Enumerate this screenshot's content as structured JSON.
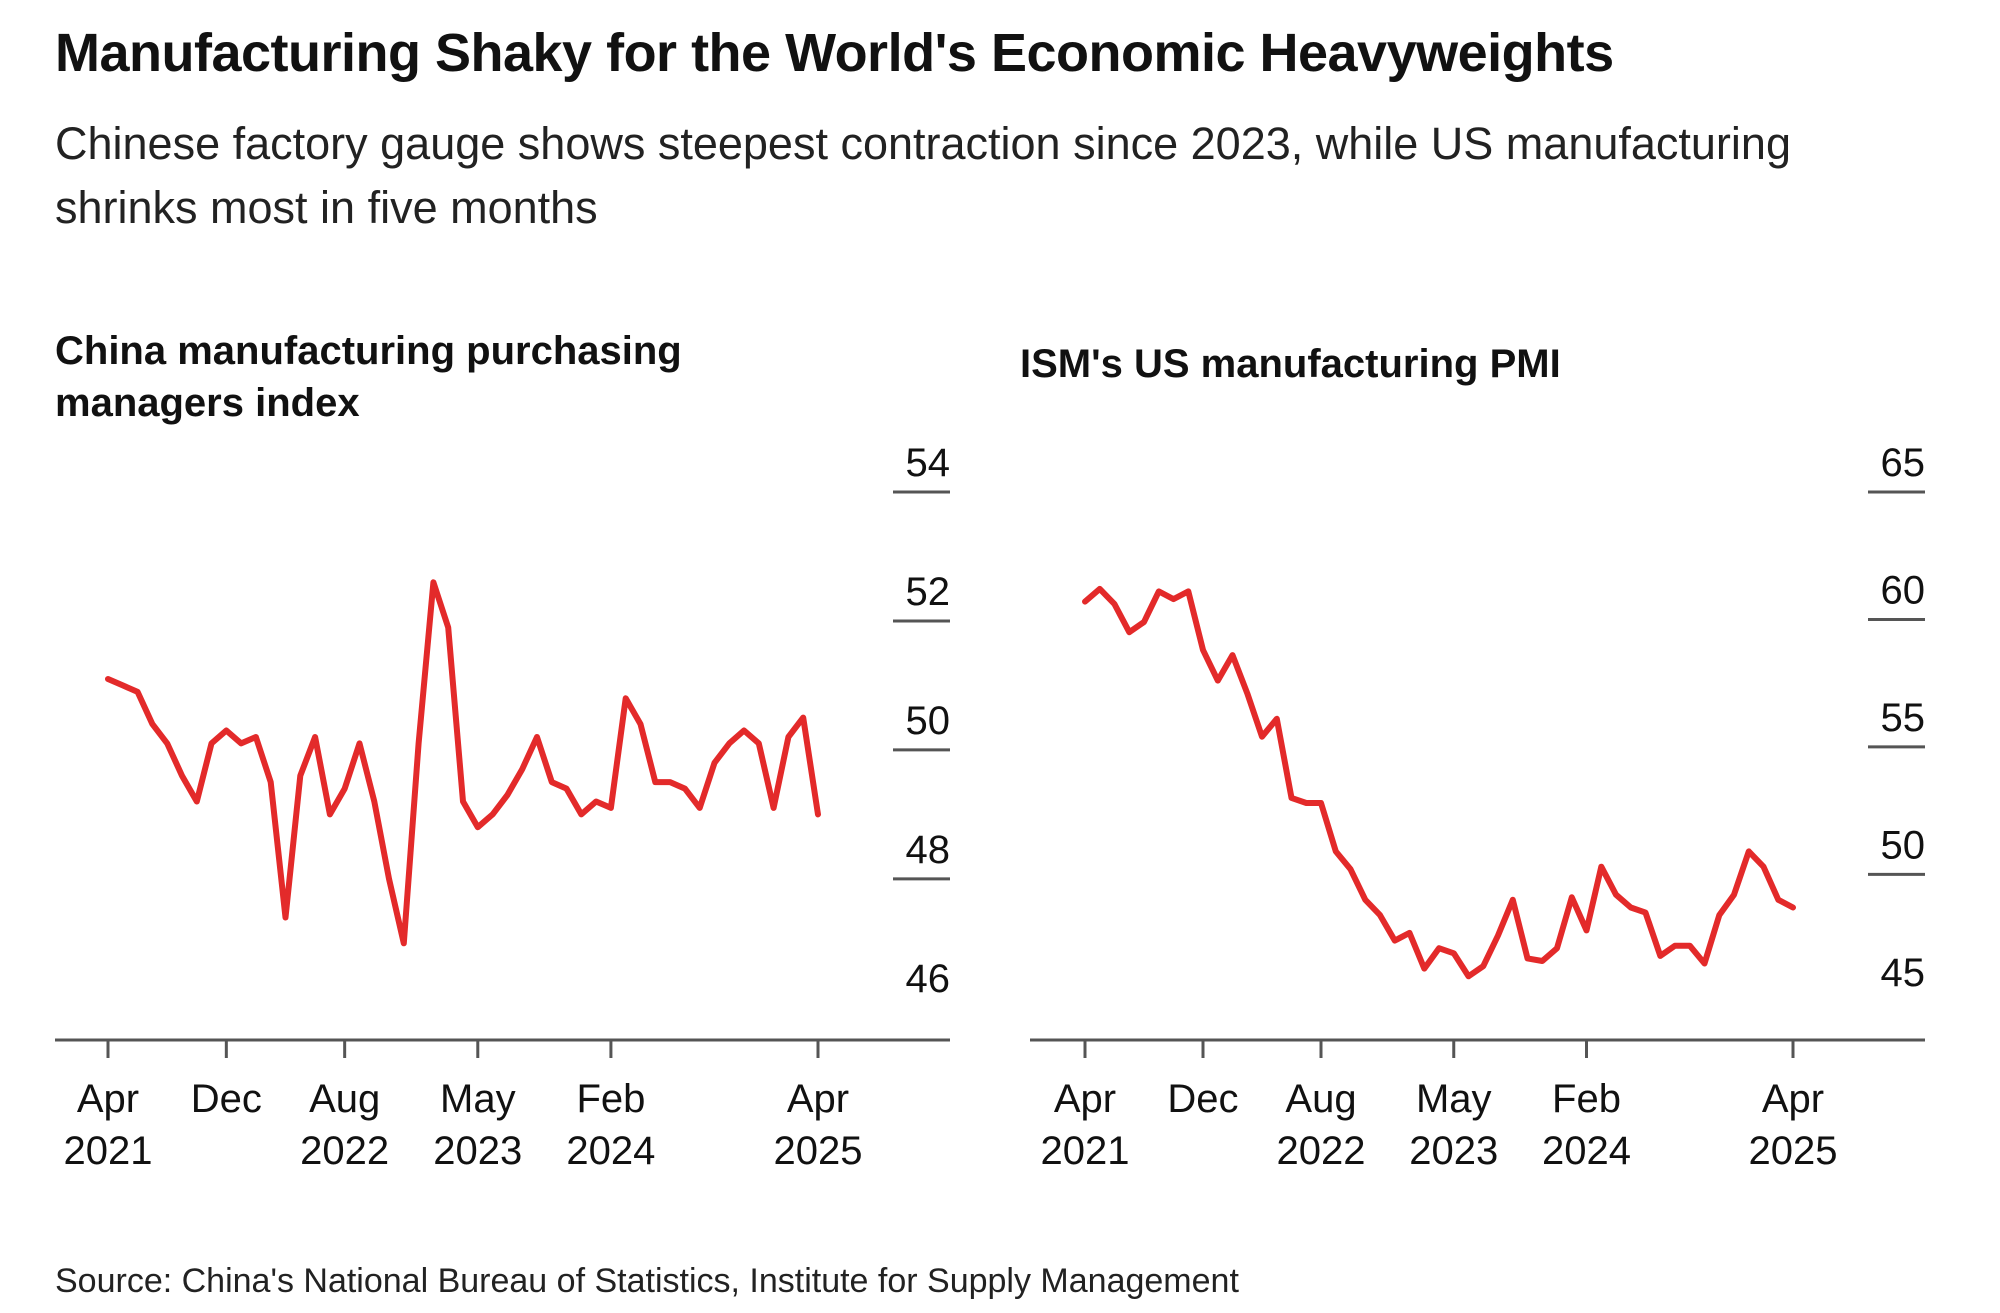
{
  "title": "Manufacturing Shaky for the World's Economic Heavyweights",
  "subtitle": "Chinese factory gauge shows steepest contraction since 2023, while US manufacturing shrinks most in five months",
  "source": "Source: China's National Bureau of Statistics, Institute for Supply Management",
  "colors": {
    "line": "#e32a2a",
    "axis": "#555555",
    "text": "#111111"
  },
  "chart_data": [
    {
      "type": "line",
      "title": "China manufacturing purchasing managers index",
      "ylim": [
        45.5,
        54
      ],
      "yticks": [
        54,
        52,
        50,
        48,
        46
      ],
      "xticks": [
        {
          "x": "2021-04",
          "label": [
            "Apr",
            "2021"
          ]
        },
        {
          "x": "2021-12",
          "label": [
            "Dec",
            ""
          ]
        },
        {
          "x": "2022-08",
          "label": [
            "Aug",
            "2022"
          ]
        },
        {
          "x": "2023-05",
          "label": [
            "May",
            "2023"
          ]
        },
        {
          "x": "2024-02",
          "label": [
            "Feb",
            "2024"
          ]
        },
        {
          "x": "2025-04",
          "label": [
            "Apr",
            "2025"
          ]
        }
      ],
      "series": [
        {
          "x": [
            "2021-04",
            "2021-05",
            "2021-06",
            "2021-07",
            "2021-08",
            "2021-09",
            "2021-10",
            "2021-11",
            "2021-12",
            "2022-01",
            "2022-02",
            "2022-03",
            "2022-04",
            "2022-05",
            "2022-06",
            "2022-07",
            "2022-08",
            "2022-09",
            "2022-10",
            "2022-11",
            "2022-12",
            "2023-01",
            "2023-02",
            "2023-03",
            "2023-04",
            "2023-05",
            "2023-06",
            "2023-07",
            "2023-08",
            "2023-09",
            "2023-10",
            "2023-11",
            "2023-12",
            "2024-01",
            "2024-02",
            "2024-03",
            "2024-04",
            "2024-05",
            "2024-06",
            "2024-07",
            "2024-08",
            "2024-09",
            "2024-10",
            "2024-11",
            "2024-12",
            "2025-01",
            "2025-02",
            "2025-03",
            "2025-04"
          ],
          "values": [
            51.1,
            51.0,
            50.9,
            50.4,
            50.1,
            49.6,
            49.2,
            50.1,
            50.3,
            50.1,
            50.2,
            49.5,
            47.4,
            49.6,
            50.2,
            49.0,
            49.4,
            50.1,
            49.2,
            48.0,
            47.0,
            50.1,
            52.6,
            51.9,
            49.2,
            48.8,
            49.0,
            49.3,
            49.7,
            50.2,
            49.5,
            49.4,
            49.0,
            49.2,
            49.1,
            50.8,
            50.4,
            49.5,
            49.5,
            49.4,
            49.1,
            49.8,
            50.1,
            50.3,
            50.1,
            49.1,
            50.2,
            50.5,
            49.0
          ]
        }
      ]
    },
    {
      "type": "line",
      "title": "ISM's US manufacturing PMI",
      "ylim": [
        43.5,
        65
      ],
      "yticks": [
        65,
        60,
        55,
        50,
        45
      ],
      "xticks": [
        {
          "x": "2021-04",
          "label": [
            "Apr",
            "2021"
          ]
        },
        {
          "x": "2021-12",
          "label": [
            "Dec",
            ""
          ]
        },
        {
          "x": "2022-08",
          "label": [
            "Aug",
            "2022"
          ]
        },
        {
          "x": "2023-05",
          "label": [
            "May",
            "2023"
          ]
        },
        {
          "x": "2024-02",
          "label": [
            "Feb",
            "2024"
          ]
        },
        {
          "x": "2025-04",
          "label": [
            "Apr",
            "2025"
          ]
        }
      ],
      "series": [
        {
          "x": [
            "2021-04",
            "2021-05",
            "2021-06",
            "2021-07",
            "2021-08",
            "2021-09",
            "2021-10",
            "2021-11",
            "2021-12",
            "2022-01",
            "2022-02",
            "2022-03",
            "2022-04",
            "2022-05",
            "2022-06",
            "2022-07",
            "2022-08",
            "2022-09",
            "2022-10",
            "2022-11",
            "2022-12",
            "2023-01",
            "2023-02",
            "2023-03",
            "2023-04",
            "2023-05",
            "2023-06",
            "2023-07",
            "2023-08",
            "2023-09",
            "2023-10",
            "2023-11",
            "2023-12",
            "2024-01",
            "2024-02",
            "2024-03",
            "2024-04",
            "2024-05",
            "2024-06",
            "2024-07",
            "2024-08",
            "2024-09",
            "2024-10",
            "2024-11",
            "2024-12",
            "2025-01",
            "2025-02",
            "2025-03",
            "2025-04"
          ],
          "values": [
            60.7,
            61.2,
            60.6,
            59.5,
            59.9,
            61.1,
            60.8,
            61.1,
            58.8,
            57.6,
            58.6,
            57.1,
            55.4,
            56.1,
            53.0,
            52.8,
            52.8,
            50.9,
            50.2,
            49.0,
            48.4,
            47.4,
            47.7,
            46.3,
            47.1,
            46.9,
            46.0,
            46.4,
            47.6,
            49.0,
            46.7,
            46.6,
            47.1,
            49.1,
            47.8,
            50.3,
            49.2,
            48.7,
            48.5,
            46.8,
            47.2,
            47.2,
            46.5,
            48.4,
            49.2,
            50.9,
            50.3,
            49.0,
            48.7
          ]
        }
      ]
    }
  ]
}
